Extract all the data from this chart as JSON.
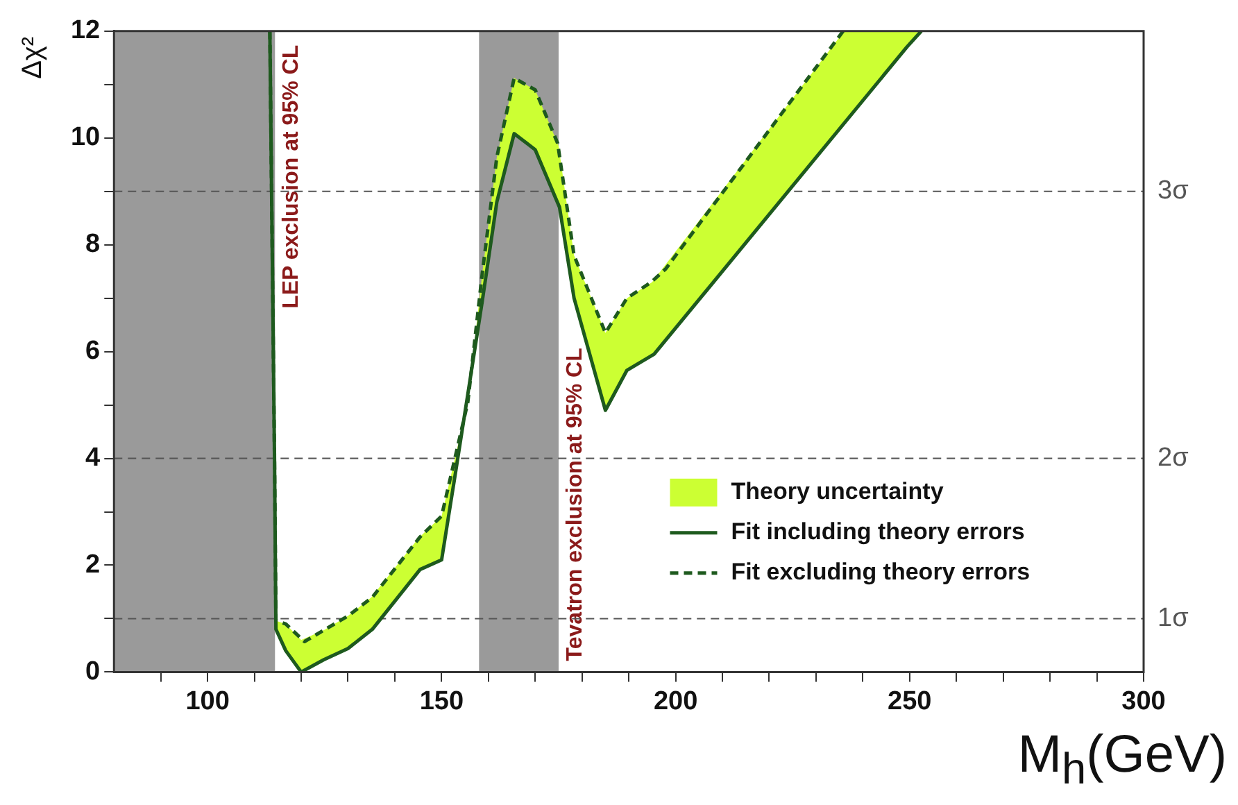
{
  "chart_data": {
    "type": "line",
    "xlabel": "M$_{h}$(GeV)",
    "ylabel": "Δχ²",
    "xlim": [
      80,
      300
    ],
    "xticks": [
      {
        "value": 90,
        "label": null
      },
      100,
      {
        "value": 110,
        "label": null
      },
      {
        "value": 120,
        "label": null
      },
      {
        "value": 130,
        "label": null
      },
      {
        "value": 140,
        "label": null
      },
      150,
      {
        "value": 160,
        "label": null
      },
      {
        "value": 170,
        "label": null
      },
      {
        "value": 180,
        "label": null
      },
      {
        "value": 190,
        "label": null
      },
      200,
      {
        "value": 210,
        "label": null
      },
      {
        "value": 220,
        "label": null
      },
      {
        "value": 230,
        "label": null
      },
      {
        "value": 240,
        "label": null
      },
      250,
      {
        "value": 260,
        "label": null
      },
      {
        "value": 270,
        "label": null
      },
      {
        "value": 280,
        "label": null
      },
      {
        "value": 290,
        "label": null
      },
      300
    ],
    "ylim": [
      0,
      12
    ],
    "yticks": [
      0,
      {
        "value": 1,
        "label": null
      },
      2,
      {
        "value": 3,
        "label": null
      },
      4,
      {
        "value": 5,
        "label": null
      },
      6,
      {
        "value": 7,
        "label": null
      },
      8,
      {
        "value": 9,
        "label": null
      },
      10,
      {
        "value": 11,
        "label": null
      },
      12
    ],
    "grid": false,
    "legend": "bottom right",
    "series": [
      {
        "name": "Theory uncertainty",
        "type": "area",
        "color": "#ccff33",
        "x": [
          114.6,
          116.7,
          120,
          125,
          130,
          135,
          145,
          150,
          155.6,
          158.7,
          161.8,
          165.5,
          170,
          175,
          178.3,
          185,
          189.6,
          195,
          236,
          252
        ],
        "values": [
          null,
          null,
          null,
          null,
          null,
          null,
          null,
          null,
          null,
          null,
          null,
          null,
          null,
          null,
          null,
          null,
          null,
          null,
          null,
          null
        ],
        "lower": [
          0.8,
          0.4,
          0,
          0.24,
          0.44,
          0.8,
          1.9,
          2.1,
          5.2,
          6.95,
          8.8,
          10.08,
          9.78,
          8.7,
          7.0,
          4.9,
          5.65,
          5.95,
          10.3,
          12
        ],
        "upper": [
          0.96,
          0.9,
          0.6,
          0.79,
          1.05,
          1.4,
          2.5,
          2.92,
          5.05,
          7.47,
          9.64,
          11.12,
          10.9,
          9.85,
          7.8,
          6.35,
          7.0,
          7.3,
          12,
          12
        ]
      },
      {
        "name": "Fit including theory errors",
        "type": "line",
        "color": "#1e5a1e",
        "line_style": "solid",
        "x": [
          113.3,
          114.3,
          114.6,
          116.7,
          120,
          124.8,
          130,
          135.2,
          145.4,
          150,
          153,
          155.6,
          158.7,
          161.8,
          165.5,
          170,
          175.2,
          178.3,
          185,
          189.6,
          195.4,
          249.4,
          252.5
        ],
        "values": [
          12,
          4,
          0.8,
          0.4,
          0,
          0.23,
          0.44,
          0.8,
          1.92,
          2.1,
          3.75,
          5.2,
          6.95,
          8.8,
          10.08,
          9.78,
          8.7,
          7.0,
          4.9,
          5.65,
          5.95,
          11.7,
          12
        ]
      },
      {
        "name": "Fit excluding theory errors",
        "type": "line",
        "color": "#1e5a1e",
        "line_style": "dashed",
        "x": [
          113.3,
          114.3,
          114.6,
          116.7,
          120.7,
          130,
          135.2,
          145.4,
          150,
          155.6,
          158.7,
          161.8,
          165.5,
          170,
          174.8,
          178.3,
          185,
          189.6,
          194.8,
          197.9,
          235.8
        ],
        "values": [
          12,
          4,
          0.96,
          0.9,
          0.57,
          1.05,
          1.4,
          2.53,
          2.92,
          5.05,
          7.47,
          9.64,
          11.12,
          10.9,
          9.9,
          7.8,
          6.35,
          7.0,
          7.3,
          7.55,
          12
        ]
      }
    ],
    "bands": [
      {
        "axis": "x",
        "from": 80,
        "to": 114.4,
        "label": "LEP exclusion at 95% CL",
        "color": "#9a9a9a"
      },
      {
        "axis": "x",
        "from": 158,
        "to": 175,
        "label": "Tevatron exclusion at 95% CL",
        "color": "#9a9a9a"
      }
    ],
    "ref_lines": [
      {
        "axis": "y",
        "value": 1,
        "label": "1σ",
        "color": "#555555",
        "line_style": "dashed"
      },
      {
        "axis": "y",
        "value": 4,
        "label": "2σ",
        "color": "#555555",
        "line_style": "dashed"
      },
      {
        "axis": "y",
        "value": 9,
        "label": "3σ",
        "color": "#555555",
        "line_style": "dashed"
      }
    ]
  }
}
